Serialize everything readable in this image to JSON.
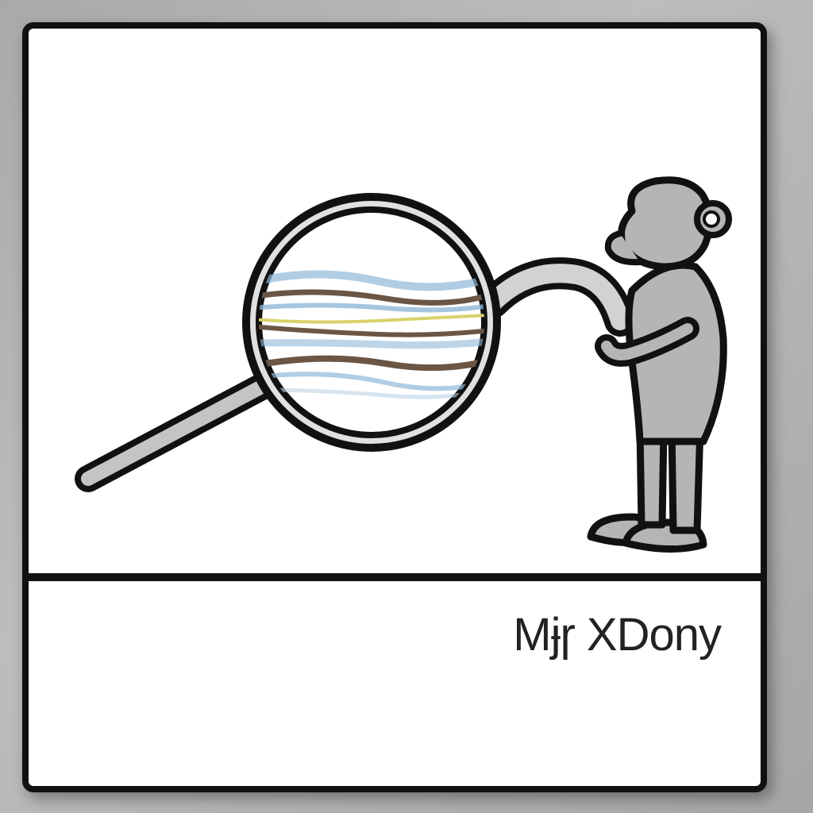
{
  "caption": {
    "text": "Mɉɼ XDony"
  },
  "illustration": {
    "subject": "monkey",
    "object": "magnifying-glass",
    "colors": {
      "outline": "#111111",
      "body": "#b5b5b5",
      "handle": "#c4c4c4",
      "lens_band_dark": "#6b5544",
      "lens_band_blue": "#8fb8d8",
      "lens_band_yellow": "#d8d26a"
    }
  }
}
